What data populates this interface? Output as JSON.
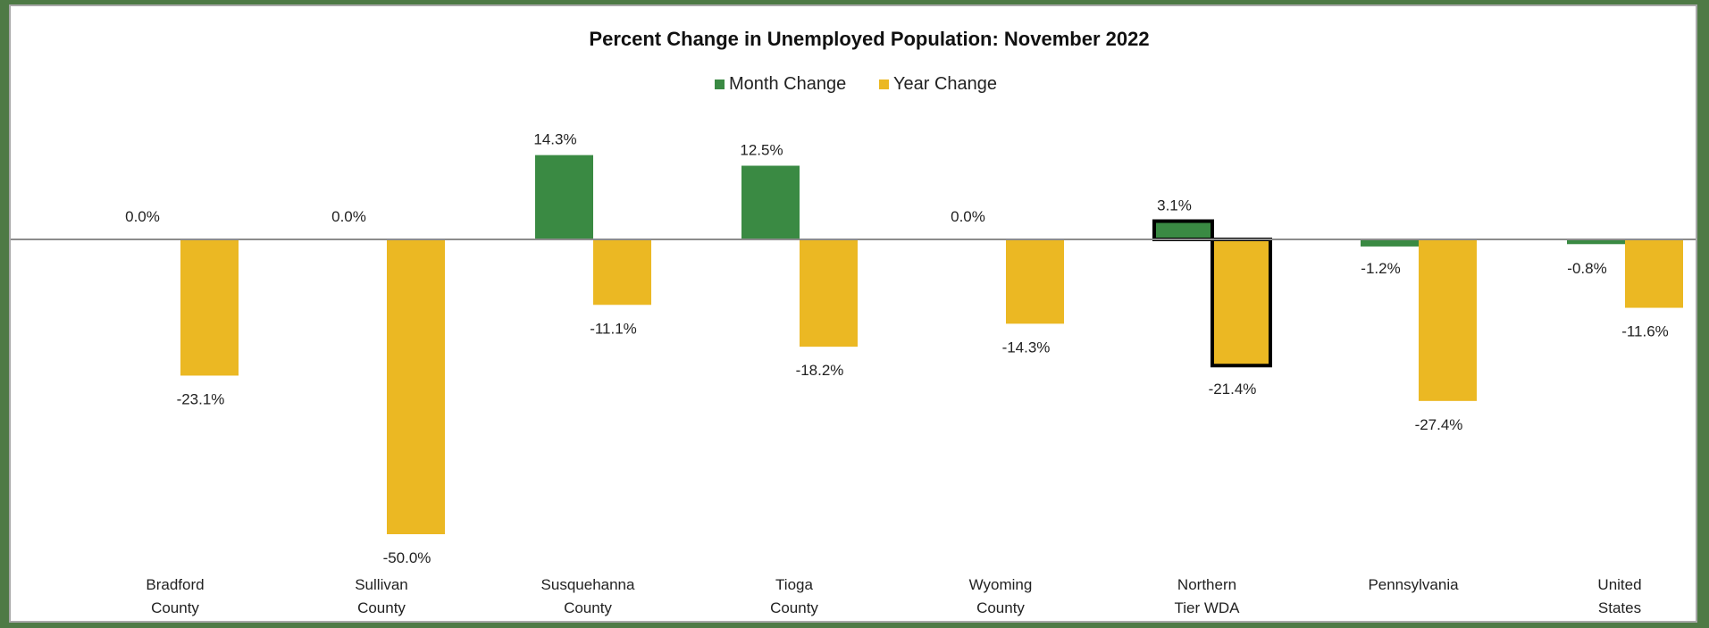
{
  "chart_data": {
    "type": "bar",
    "title": "Percent Change in Unemployed Population: November 2022",
    "xlabel": "",
    "ylabel": "",
    "categories": [
      [
        "Bradford",
        "County"
      ],
      [
        "Sullivan",
        "County"
      ],
      [
        "Susquehanna",
        "County"
      ],
      [
        "Tioga",
        "County"
      ],
      [
        "Wyoming",
        "County"
      ],
      [
        "Northern",
        "Tier WDA"
      ],
      [
        "Pennsylvania"
      ],
      [
        "United",
        "States"
      ]
    ],
    "series": [
      {
        "name": "Month Change",
        "color": "#3a8a43",
        "values": [
          0.0,
          0.0,
          14.3,
          12.5,
          0.0,
          3.1,
          -1.2,
          -0.8
        ],
        "labels": [
          "0.0%",
          "0.0%",
          "14.3%",
          "12.5%",
          "0.0%",
          "3.1%",
          "-1.2%",
          "-0.8%"
        ]
      },
      {
        "name": "Year Change",
        "color": "#ebb823",
        "values": [
          -23.1,
          -50.0,
          -11.1,
          -18.2,
          -14.3,
          -21.4,
          -27.4,
          -11.6
        ],
        "labels": [
          "-23.1%",
          "-50.0%",
          "-11.1%",
          "-18.2%",
          "-14.3%",
          "-21.4%",
          "-27.4%",
          "-11.6%"
        ]
      }
    ],
    "highlighted_category": 5,
    "legend_position": "top",
    "grid": false,
    "ylim": [
      -55,
      20
    ]
  }
}
